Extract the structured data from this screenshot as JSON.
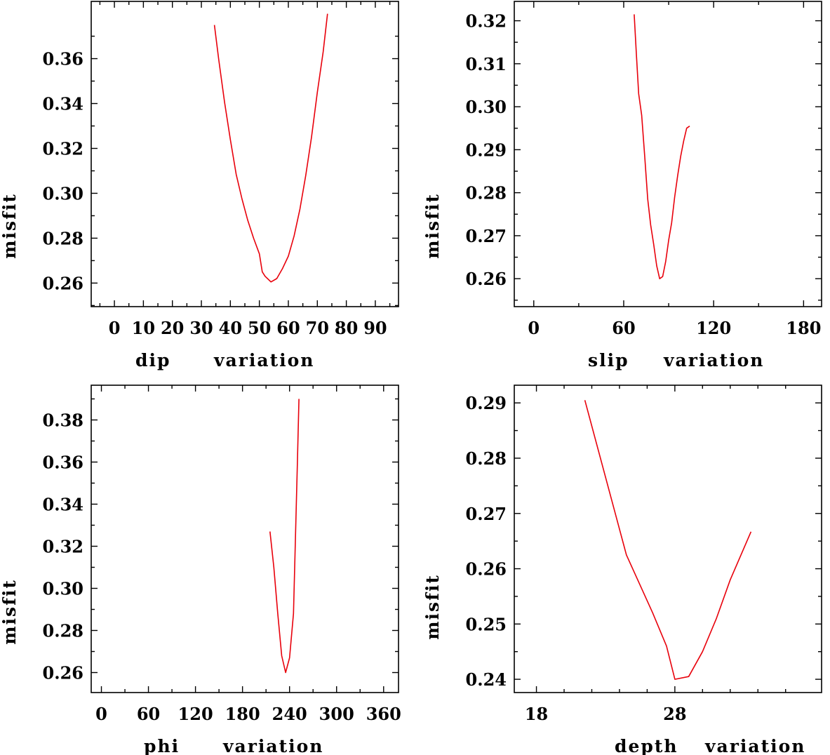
{
  "colors": {
    "curve": "#e8000b",
    "axis": "#000000",
    "background": "#ffffff"
  },
  "chart_data": [
    {
      "type": "line",
      "name": "dip",
      "xlabel_parts": [
        "dip",
        "variation"
      ],
      "ylabel": "misfit",
      "xlim": [
        -8,
        98
      ],
      "ylim": [
        0.2495,
        0.3855
      ],
      "xticks": [
        0,
        10,
        20,
        30,
        40,
        50,
        60,
        70,
        80,
        90
      ],
      "yticks": [
        0.26,
        0.28,
        0.3,
        0.32,
        0.34,
        0.36
      ],
      "yminor": [
        0.25,
        0.27,
        0.29,
        0.31,
        0.33,
        0.35,
        0.37
      ],
      "ytick_labels": [
        "0.26",
        "0.28",
        "0.30",
        "0.32",
        "0.34",
        "0.36"
      ],
      "x": [
        34.5,
        36,
        38,
        40,
        42,
        44,
        46,
        48,
        50,
        51,
        52,
        54,
        56,
        58,
        60,
        62,
        64,
        66,
        68,
        70,
        72,
        73.5
      ],
      "y": [
        0.375,
        0.3595,
        0.3405,
        0.324,
        0.3085,
        0.2975,
        0.288,
        0.28,
        0.273,
        0.265,
        0.263,
        0.2605,
        0.262,
        0.2665,
        0.272,
        0.281,
        0.293,
        0.308,
        0.325,
        0.345,
        0.363,
        0.38
      ]
    },
    {
      "type": "line",
      "name": "slip",
      "xlabel_parts": [
        "slip",
        "variation"
      ],
      "ylabel": "misfit",
      "xlim": [
        -13,
        192
      ],
      "ylim": [
        0.2535,
        0.3245
      ],
      "xticks": [
        0,
        60,
        120,
        180
      ],
      "yticks": [
        0.26,
        0.27,
        0.28,
        0.29,
        0.3,
        0.31,
        0.32
      ],
      "yminor": [
        0.255,
        0.265,
        0.275,
        0.285,
        0.295,
        0.305,
        0.315,
        0.325
      ],
      "ytick_labels": [
        "0.26",
        "0.27",
        "0.28",
        "0.29",
        "0.30",
        "0.31",
        "0.32"
      ],
      "x": [
        67,
        68.5,
        70,
        72,
        74,
        76,
        78,
        80,
        82,
        84,
        86,
        88,
        90,
        92,
        94,
        96,
        98,
        100,
        102,
        104
      ],
      "y": [
        0.3215,
        0.312,
        0.303,
        0.298,
        0.2885,
        0.2785,
        0.2725,
        0.268,
        0.263,
        0.26,
        0.2605,
        0.264,
        0.269,
        0.273,
        0.279,
        0.284,
        0.2885,
        0.292,
        0.295,
        0.2955
      ]
    },
    {
      "type": "line",
      "name": "phi",
      "xlabel_parts": [
        "phi",
        "variation"
      ],
      "ylabel": "misfit",
      "xlim": [
        -13,
        379
      ],
      "ylim": [
        0.2505,
        0.3965
      ],
      "xticks": [
        0,
        60,
        120,
        180,
        240,
        300,
        360
      ],
      "yticks": [
        0.26,
        0.28,
        0.3,
        0.32,
        0.34,
        0.36,
        0.38
      ],
      "yminor": [
        0.27,
        0.29,
        0.31,
        0.33,
        0.35,
        0.37,
        0.39
      ],
      "ytick_labels": [
        "0.26",
        "0.28",
        "0.30",
        "0.32",
        "0.34",
        "0.36",
        "0.38"
      ],
      "x": [
        215,
        220,
        225,
        230,
        235,
        240,
        245,
        250,
        252
      ],
      "y": [
        0.327,
        0.31,
        0.288,
        0.268,
        0.26,
        0.267,
        0.288,
        0.36,
        0.39
      ]
    },
    {
      "type": "line",
      "name": "depth",
      "xlabel_parts": [
        "depth",
        "variation"
      ],
      "ylabel": "misfit",
      "xlim": [
        16.4,
        38.6
      ],
      "ylim": [
        0.2376,
        0.2932
      ],
      "xticks": [
        18,
        28
      ],
      "xminor": [
        20,
        22,
        24,
        26,
        30,
        32,
        34,
        36
      ],
      "yticks": [
        0.24,
        0.25,
        0.26,
        0.27,
        0.28,
        0.29
      ],
      "yminor": [
        0.245,
        0.255,
        0.265,
        0.275,
        0.285
      ],
      "ytick_labels": [
        "0.24",
        "0.25",
        "0.26",
        "0.27",
        "0.28",
        "0.29"
      ],
      "x": [
        21.5,
        24.5,
        26.4,
        27.4,
        28.0,
        29.0,
        30.0,
        31.0,
        32.0,
        33.5
      ],
      "y": [
        0.2905,
        0.2625,
        0.252,
        0.246,
        0.24,
        0.2405,
        0.245,
        0.251,
        0.258,
        0.2667
      ]
    }
  ]
}
